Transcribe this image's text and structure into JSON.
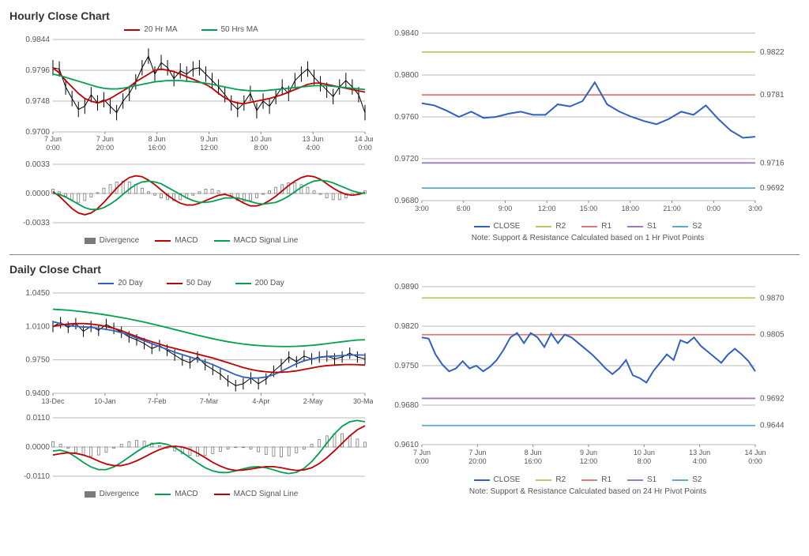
{
  "hourly": {
    "title": "Hourly Close Chart",
    "main": {
      "legend": [
        {
          "label": "20 Hr MA",
          "color": "#c00000"
        },
        {
          "label": "50 Hrs MA",
          "color": "#00a050"
        }
      ],
      "ylabels": [
        "0.9844",
        "0.9796",
        "0.9748",
        "0.9700"
      ],
      "yvals": [
        0.9844,
        0.9796,
        0.9748,
        0.97
      ],
      "xlabels": [
        [
          "7 Jun",
          "0:00"
        ],
        [
          "7 Jun",
          "20:00"
        ],
        [
          "8 Jun",
          "16:00"
        ],
        [
          "9 Jun",
          "12:00"
        ],
        [
          "10 Jun",
          "8:00"
        ],
        [
          "13 Jun",
          "4:00"
        ],
        [
          "14 Jun",
          "0:00"
        ]
      ],
      "price_color": "#000000",
      "ma20_color": "#c00000",
      "ma50_color": "#00a050",
      "grid_color": "#b8b8b8",
      "background": "#ffffff",
      "ylim": [
        0.97,
        0.9844
      ],
      "price": [
        0.98,
        0.9798,
        0.977,
        0.9752,
        0.9735,
        0.974,
        0.9758,
        0.9745,
        0.975,
        0.974,
        0.973,
        0.9748,
        0.976,
        0.9778,
        0.98,
        0.9818,
        0.979,
        0.9808,
        0.98,
        0.9783,
        0.9795,
        0.979,
        0.9798,
        0.98,
        0.979,
        0.978,
        0.977,
        0.9758,
        0.9745,
        0.9735,
        0.9745,
        0.976,
        0.9733,
        0.9748,
        0.974,
        0.9755,
        0.977,
        0.976,
        0.978,
        0.979,
        0.9798,
        0.9785,
        0.9775,
        0.9765,
        0.9755,
        0.977,
        0.978,
        0.977,
        0.9758,
        0.973
      ],
      "ma20": [
        0.98,
        0.9792,
        0.978,
        0.977,
        0.976,
        0.9752,
        0.9748,
        0.9745,
        0.9748,
        0.9752,
        0.9758,
        0.9764,
        0.977,
        0.9778,
        0.9784,
        0.979,
        0.9796,
        0.9798,
        0.9796,
        0.9794,
        0.979,
        0.9786,
        0.9782,
        0.9778,
        0.9774,
        0.9768,
        0.976,
        0.9753,
        0.9748,
        0.9745,
        0.9744,
        0.9746,
        0.9748,
        0.975,
        0.9752,
        0.9755,
        0.9758,
        0.9762,
        0.9766,
        0.977,
        0.9774,
        0.9776,
        0.9776,
        0.9774,
        0.9772,
        0.977,
        0.9768,
        0.9766,
        0.9764,
        0.9762
      ],
      "ma50": [
        0.979,
        0.9788,
        0.9785,
        0.9782,
        0.9779,
        0.9776,
        0.9773,
        0.977,
        0.9768,
        0.9767,
        0.9767,
        0.9768,
        0.977,
        0.9772,
        0.9774,
        0.9776,
        0.9778,
        0.9779,
        0.978,
        0.978,
        0.978,
        0.9779,
        0.9778,
        0.9777,
        0.9776,
        0.9774,
        0.9772,
        0.977,
        0.9768,
        0.9766,
        0.9765,
        0.9764,
        0.9764,
        0.9764,
        0.9765,
        0.9766,
        0.9767,
        0.9768,
        0.9769,
        0.977,
        0.9771,
        0.9772,
        0.9772,
        0.9772,
        0.9771,
        0.977,
        0.9769,
        0.9768,
        0.9767,
        0.9766
      ]
    },
    "macd": {
      "ylabels": [
        "0.0033",
        "0.0000",
        "-0.0033"
      ],
      "ylim": [
        -0.0033,
        0.0033
      ],
      "legend": [
        {
          "label": "Divergence",
          "color": "#7a7a7a",
          "type": "box"
        },
        {
          "label": "MACD",
          "color": "#c00000",
          "type": "line"
        },
        {
          "label": "MACD Signal Line",
          "color": "#00a050",
          "type": "line"
        }
      ],
      "div_color": "#7a7a7a",
      "macd_color": "#c00000",
      "signal_color": "#00a050",
      "divergence": [
        0.0005,
        0.0002,
        -0.0003,
        -0.0007,
        -0.001,
        -0.0008,
        -0.0004,
        0.0001,
        0.0006,
        0.001,
        0.0013,
        0.0014,
        0.0013,
        0.001,
        0.0006,
        0.0002,
        -0.0002,
        -0.0005,
        -0.0007,
        -0.0008,
        -0.0007,
        -0.0005,
        -0.0002,
        0.0002,
        0.0005,
        0.0005,
        0.0003,
        -0.0001,
        -0.0005,
        -0.0008,
        -0.0009,
        -0.0008,
        -0.0005,
        -0.0001,
        0.0003,
        0.0007,
        0.001,
        0.0012,
        0.0012,
        0.001,
        0.0007,
        0.0003,
        -0.0001,
        -0.0005,
        -0.0007,
        -0.0007,
        -0.0005,
        -0.0002,
        0.0001,
        0.0003
      ],
      "macd": [
        0.0002,
        -0.0003,
        -0.001,
        -0.0017,
        -0.0022,
        -0.0024,
        -0.0022,
        -0.0017,
        -0.001,
        -0.0002,
        0.0006,
        0.0013,
        0.0018,
        0.002,
        0.0019,
        0.0015,
        0.001,
        0.0004,
        -0.0002,
        -0.0007,
        -0.0011,
        -0.0013,
        -0.0013,
        -0.0011,
        -0.0008,
        -0.0005,
        -0.0002,
        -0.0001,
        -0.0003,
        -0.0007,
        -0.0011,
        -0.0014,
        -0.0014,
        -0.0012,
        -0.0008,
        -0.0003,
        0.0003,
        0.0009,
        0.0014,
        0.0018,
        0.002,
        0.0019,
        0.0016,
        0.0011,
        0.0006,
        0.0002,
        -0.0001,
        -0.0002,
        -0.0001,
        0.0001
      ],
      "signal": [
        0.0,
        -0.0001,
        -0.0004,
        -0.0008,
        -0.0012,
        -0.0016,
        -0.0018,
        -0.0018,
        -0.0016,
        -0.0012,
        -0.0007,
        -0.0001,
        0.0005,
        0.001,
        0.0013,
        0.0014,
        0.0013,
        0.0011,
        0.0007,
        0.0003,
        -0.0001,
        -0.0005,
        -0.0008,
        -0.001,
        -0.001,
        -0.0009,
        -0.0007,
        -0.0005,
        -0.0005,
        -0.0005,
        -0.0007,
        -0.0009,
        -0.0011,
        -0.0012,
        -0.0011,
        -0.001,
        -0.0007,
        -0.0003,
        0.0002,
        0.0007,
        0.0011,
        0.0014,
        0.0015,
        0.0014,
        0.0012,
        0.0009,
        0.0006,
        0.0003,
        0.0001,
        0.0
      ]
    },
    "sr": {
      "ylabels": [
        "0.9840",
        "0.9800",
        "0.9760",
        "0.9720",
        "0.9680"
      ],
      "ylim": [
        0.968,
        0.984
      ],
      "xlabels": [
        "3:00",
        "6:00",
        "9:00",
        "12:00",
        "15:00",
        "18:00",
        "21:00",
        "0:00",
        "3:00"
      ],
      "close_color": "#3060c0",
      "levels": [
        {
          "key": "R2",
          "value": 0.9822,
          "color": "#b8c862",
          "label": "0.9822"
        },
        {
          "key": "R1",
          "value": 0.9781,
          "color": "#e07a7a",
          "label": "0.9781"
        },
        {
          "key": "S1",
          "value": 0.9716,
          "color": "#9a7ab8",
          "label": "0.9716"
        },
        {
          "key": "S2",
          "value": 0.9692,
          "color": "#5aaaca",
          "label": "0.9692"
        }
      ],
      "close": [
        0.9773,
        0.9771,
        0.9766,
        0.976,
        0.9765,
        0.9759,
        0.976,
        0.9763,
        0.9765,
        0.9762,
        0.9762,
        0.9772,
        0.977,
        0.9775,
        0.9793,
        0.9772,
        0.9765,
        0.976,
        0.9756,
        0.9753,
        0.9758,
        0.9765,
        0.9762,
        0.9771,
        0.9758,
        0.9747,
        0.974,
        0.9741
      ],
      "legend": [
        {
          "label": "CLOSE",
          "color": "#3060c0"
        },
        {
          "label": "R2",
          "color": "#b8c862"
        },
        {
          "label": "R1",
          "color": "#e07a7a"
        },
        {
          "label": "S1",
          "color": "#9a7ab8"
        },
        {
          "label": "S2",
          "color": "#5aaaca"
        }
      ],
      "note": "Note: Support & Resistance Calculated based on 1 Hr Pivot Points"
    }
  },
  "daily": {
    "title": "Daily Close Chart",
    "main": {
      "legend": [
        {
          "label": "20 Day",
          "color": "#3060c0"
        },
        {
          "label": "50 Day",
          "color": "#c00000"
        },
        {
          "label": "200 Day",
          "color": "#00a050"
        }
      ],
      "ylabels": [
        "1.0450",
        "1.0100",
        "0.9750",
        "0.9400"
      ],
      "ylim": [
        0.94,
        1.045
      ],
      "xlabels": [
        "13-Dec",
        "10-Jan",
        "7-Feb",
        "7-Mar",
        "4-Apr",
        "2-May",
        "30-May"
      ],
      "price_color": "#000000",
      "d20_color": "#3060c0",
      "d50_color": "#c00000",
      "d200_color": "#00a050",
      "price": [
        1.01,
        1.014,
        1.009,
        1.013,
        1.005,
        1.01,
        1.006,
        1.012,
        1.008,
        1.004,
        0.999,
        0.996,
        0.992,
        0.987,
        0.99,
        0.985,
        0.98,
        0.975,
        0.972,
        0.978,
        0.97,
        0.965,
        0.96,
        0.953,
        0.948,
        0.95,
        0.956,
        0.95,
        0.955,
        0.963,
        0.97,
        0.978,
        0.973,
        0.979,
        0.976,
        0.978,
        0.979,
        0.976,
        0.978,
        0.982,
        0.978,
        0.976
      ],
      "d20": [
        1.015,
        1.013,
        1.011,
        1.01,
        1.0095,
        1.009,
        1.008,
        1.007,
        1.0055,
        1.0035,
        1.001,
        0.998,
        0.995,
        0.992,
        0.989,
        0.986,
        0.983,
        0.9805,
        0.978,
        0.9755,
        0.973,
        0.97,
        0.9665,
        0.963,
        0.9595,
        0.957,
        0.956,
        0.956,
        0.957,
        0.9595,
        0.963,
        0.967,
        0.971,
        0.974,
        0.976,
        0.9775,
        0.9785,
        0.979,
        0.9795,
        0.98,
        0.9802,
        0.98
      ],
      "d50": [
        1.01,
        1.0115,
        1.0125,
        1.013,
        1.013,
        1.0125,
        1.0115,
        1.01,
        1.008,
        1.0055,
        1.0025,
        0.9995,
        0.9965,
        0.994,
        0.9915,
        0.989,
        0.987,
        0.985,
        0.983,
        0.981,
        0.979,
        0.977,
        0.9745,
        0.972,
        0.9695,
        0.967,
        0.965,
        0.9635,
        0.9625,
        0.962,
        0.962,
        0.9625,
        0.9635,
        0.965,
        0.9665,
        0.968,
        0.969,
        0.9695,
        0.97,
        0.9702,
        0.97,
        0.9695
      ],
      "d200": [
        1.028,
        1.0275,
        1.027,
        1.0262,
        1.0253,
        1.0243,
        1.0232,
        1.022,
        1.0207,
        1.0193,
        1.0178,
        1.0162,
        1.0145,
        1.0127,
        1.0108,
        1.0088,
        1.0068,
        1.0048,
        1.0028,
        1.0008,
        0.999,
        0.9972,
        0.9955,
        0.994,
        0.9927,
        0.9916,
        0.9907,
        0.99,
        0.9895,
        0.9892,
        0.989,
        0.989,
        0.9892,
        0.9896,
        0.9902,
        0.991,
        0.992,
        0.993,
        0.994,
        0.995,
        0.9958,
        0.996
      ]
    },
    "macd": {
      "ylabels": [
        "0.0110",
        "0.0000",
        "-0.0110"
      ],
      "ylim": [
        -0.011,
        0.011
      ],
      "legend": [
        {
          "label": "Divergence",
          "color": "#7a7a7a",
          "type": "box"
        },
        {
          "label": "MACD",
          "color": "#00a050",
          "type": "line"
        },
        {
          "label": "MACD Signal Line",
          "color": "#c00000",
          "type": "line"
        }
      ],
      "div_color": "#7a7a7a",
      "macd_color": "#00a050",
      "signal_color": "#c00000",
      "divergence": [
        0.002,
        0.001,
        -0.0005,
        -0.002,
        -0.003,
        -0.0035,
        -0.003,
        -0.002,
        -0.0005,
        0.001,
        0.002,
        0.0025,
        0.0022,
        0.0015,
        0.0005,
        -0.0005,
        -0.0015,
        -0.0025,
        -0.0032,
        -0.0035,
        -0.0032,
        -0.0025,
        -0.0016,
        -0.0008,
        -0.0002,
        -0.0002,
        -0.0008,
        -0.0018,
        -0.0028,
        -0.0035,
        -0.0037,
        -0.0033,
        -0.0022,
        -0.0008,
        0.001,
        0.0028,
        0.0042,
        0.005,
        0.005,
        0.0042,
        0.003,
        0.0018
      ],
      "macd": [
        -0.0015,
        -0.0012,
        -0.002,
        -0.0038,
        -0.0058,
        -0.0075,
        -0.0085,
        -0.0085,
        -0.0075,
        -0.0058,
        -0.0038,
        -0.0018,
        0.0,
        0.0012,
        0.0015,
        0.001,
        -0.0002,
        -0.002,
        -0.004,
        -0.006,
        -0.0078,
        -0.009,
        -0.0096,
        -0.0096,
        -0.009,
        -0.0082,
        -0.0076,
        -0.0074,
        -0.0078,
        -0.0086,
        -0.0095,
        -0.01,
        -0.0095,
        -0.008,
        -0.0055,
        -0.0022,
        0.0015,
        0.005,
        0.0078,
        0.0095,
        0.01,
        0.0095
      ],
      "signal": [
        -0.003,
        -0.0025,
        -0.0022,
        -0.0024,
        -0.003,
        -0.004,
        -0.0053,
        -0.0064,
        -0.007,
        -0.007,
        -0.0063,
        -0.0052,
        -0.0038,
        -0.0023,
        -0.001,
        0.0,
        0.0003,
        0.0,
        -0.0009,
        -0.0023,
        -0.004,
        -0.0058,
        -0.0072,
        -0.0083,
        -0.0088,
        -0.0087,
        -0.0083,
        -0.0078,
        -0.0074,
        -0.0074,
        -0.0078,
        -0.0084,
        -0.0088,
        -0.0086,
        -0.0078,
        -0.0062,
        -0.004,
        -0.0014,
        0.0014,
        0.0042,
        0.0065,
        0.008
      ]
    },
    "sr": {
      "ylabels": [
        "0.9890",
        "0.9820",
        "0.9750",
        "0.9680",
        "0.9610"
      ],
      "ylim": [
        0.961,
        0.989
      ],
      "xlabels": [
        [
          "7 Jun",
          "0:00"
        ],
        [
          "7 Jun",
          "20:00"
        ],
        [
          "8 Jun",
          "16:00"
        ],
        [
          "9 Jun",
          "12:00"
        ],
        [
          "10 Jun",
          "8:00"
        ],
        [
          "13 Jun",
          "4:00"
        ],
        [
          "14 Jun",
          "0:00"
        ]
      ],
      "close_color": "#3060c0",
      "levels": [
        {
          "key": "R2",
          "value": 0.987,
          "color": "#b8c862",
          "label": "0.9870"
        },
        {
          "key": "R1",
          "value": 0.9805,
          "color": "#e07a7a",
          "label": "0.9805"
        },
        {
          "key": "S1",
          "value": 0.9692,
          "color": "#9a7ab8",
          "label": "0.9692"
        },
        {
          "key": "S2",
          "value": 0.9644,
          "color": "#5aaaca",
          "label": "0.9644"
        }
      ],
      "close": [
        0.98,
        0.9798,
        0.977,
        0.9752,
        0.974,
        0.9745,
        0.9758,
        0.9745,
        0.975,
        0.974,
        0.9748,
        0.976,
        0.9778,
        0.98,
        0.9808,
        0.979,
        0.9808,
        0.98,
        0.9783,
        0.9807,
        0.979,
        0.9805,
        0.98,
        0.979,
        0.978,
        0.977,
        0.9758,
        0.9745,
        0.9735,
        0.9745,
        0.976,
        0.9733,
        0.9728,
        0.972,
        0.974,
        0.9755,
        0.977,
        0.976,
        0.9795,
        0.979,
        0.98,
        0.9785,
        0.9775,
        0.9765,
        0.9755,
        0.977,
        0.978,
        0.977,
        0.9758,
        0.974
      ],
      "legend": [
        {
          "label": "CLOSE",
          "color": "#3060c0"
        },
        {
          "label": "R2",
          "color": "#b8c862"
        },
        {
          "label": "R1",
          "color": "#e07a7a"
        },
        {
          "label": "S1",
          "color": "#9a7ab8"
        },
        {
          "label": "S2",
          "color": "#5aaaca"
        }
      ],
      "note": "Note: Support & Resistance Calculated based on 24 Hr Pivot Points"
    }
  }
}
